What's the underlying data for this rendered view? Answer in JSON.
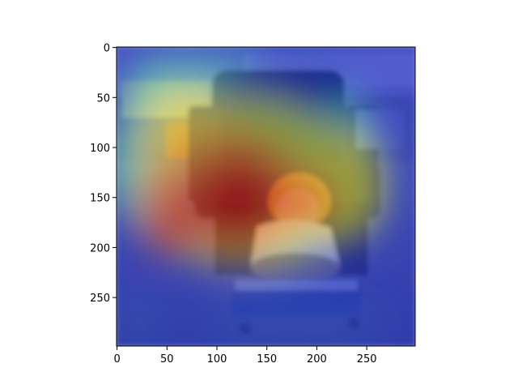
{
  "figure": {
    "content": "heatmap overlay on photo of toddler playing with a toy keyboard in front of a black armchair"
  },
  "axes": {
    "x_ticks": [
      {
        "value": 0,
        "label": "0"
      },
      {
        "value": 50,
        "label": "50"
      },
      {
        "value": 100,
        "label": "100"
      },
      {
        "value": 150,
        "label": "150"
      },
      {
        "value": 200,
        "label": "200"
      },
      {
        "value": 250,
        "label": "250"
      }
    ],
    "y_ticks": [
      {
        "value": 0,
        "label": "0"
      },
      {
        "value": 50,
        "label": "50"
      },
      {
        "value": 100,
        "label": "100"
      },
      {
        "value": 150,
        "label": "150"
      },
      {
        "value": 200,
        "label": "200"
      },
      {
        "value": 250,
        "label": "250"
      }
    ],
    "xlim": [
      0,
      299
    ],
    "ylim": [
      0,
      299
    ],
    "y_inverted": true
  },
  "colors": {
    "heat_low": "#1f2fd0",
    "heat_mid": "#2fd0c8",
    "heat_warm": "#f0e040",
    "heat_high": "#d01010"
  }
}
